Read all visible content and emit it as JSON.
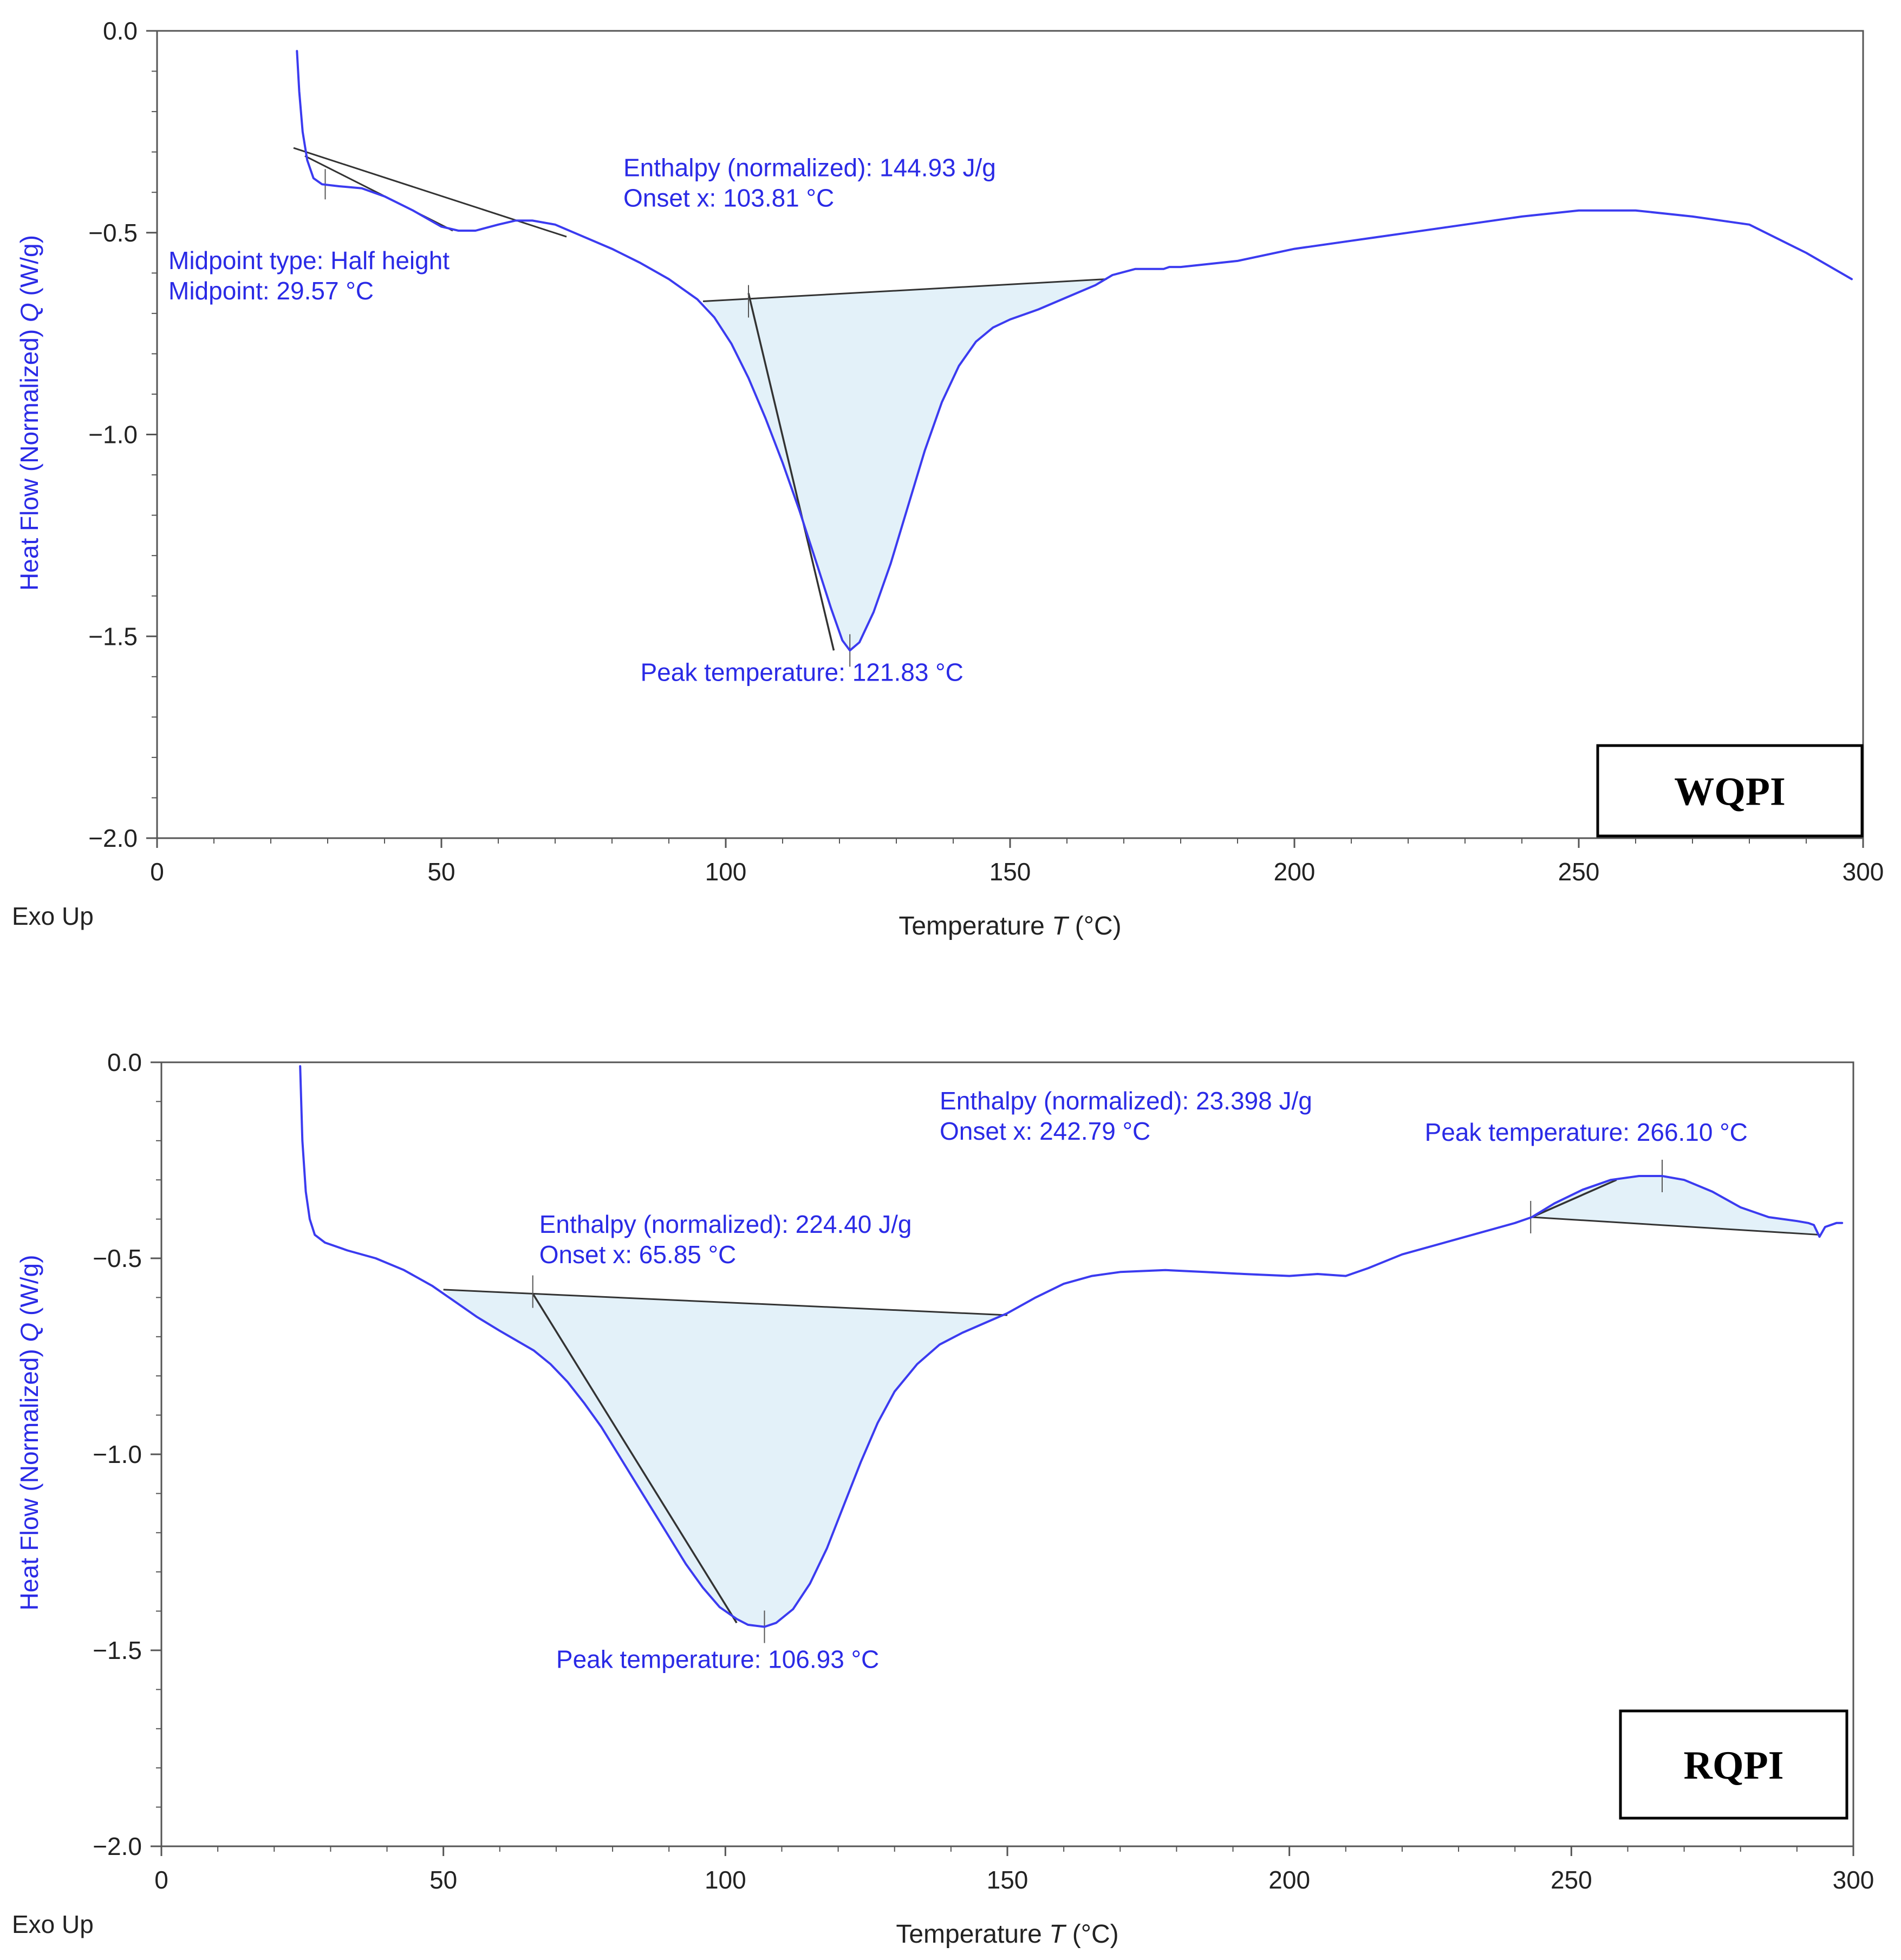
{
  "colors": {
    "curve": "#3b3bf0",
    "annotation_text": "#2a2ae6",
    "axis": "#555555",
    "tangent": "#333333",
    "fill": "#e3f1f9"
  },
  "chart_data": [
    {
      "type": "line",
      "id": "wqpi",
      "sample_label": "WQPI",
      "xlabel_main": "Temperature ",
      "xlabel_symbol": "T",
      "xlabel_unit": " (°C)",
      "ylabel_main": "Heat Flow (Normalized) ",
      "ylabel_symbol": "Q",
      "ylabel_unit": " (W/g)",
      "corner_label": "Exo Up",
      "xlim": [
        0,
        300
      ],
      "ylim": [
        -2.0,
        0.0
      ],
      "x_ticks": [
        0,
        50,
        100,
        150,
        200,
        250,
        300
      ],
      "x_tick_labels": [
        "0",
        "50",
        "100",
        "150",
        "200",
        "250",
        "300"
      ],
      "y_ticks": [
        0.0,
        -0.5,
        -1.0,
        -1.5,
        -2.0
      ],
      "y_tick_labels": [
        "0.0",
        "−0.5",
        "−1.0",
        "−1.5",
        "−2.0"
      ],
      "series": [
        {
          "name": "Heat flow",
          "points": [
            [
              24.6,
              -0.05
            ],
            [
              25.0,
              -0.15
            ],
            [
              25.6,
              -0.25
            ],
            [
              26.4,
              -0.32
            ],
            [
              27.5,
              -0.365
            ],
            [
              29.0,
              -0.38
            ],
            [
              32,
              -0.385
            ],
            [
              36,
              -0.39
            ],
            [
              40,
              -0.41
            ],
            [
              45,
              -0.445
            ],
            [
              50,
              -0.485
            ],
            [
              53,
              -0.495
            ],
            [
              56,
              -0.495
            ],
            [
              60,
              -0.48
            ],
            [
              63,
              -0.47
            ],
            [
              66,
              -0.47
            ],
            [
              70,
              -0.48
            ],
            [
              75,
              -0.51
            ],
            [
              80,
              -0.54
            ],
            [
              85,
              -0.575
            ],
            [
              90,
              -0.615
            ],
            [
              95,
              -0.665
            ],
            [
              98,
              -0.71
            ],
            [
              101,
              -0.775
            ],
            [
              104,
              -0.86
            ],
            [
              107,
              -0.96
            ],
            [
              110,
              -1.07
            ],
            [
              113,
              -1.19
            ],
            [
              116,
              -1.32
            ],
            [
              118.5,
              -1.43
            ],
            [
              120.5,
              -1.51
            ],
            [
              121.83,
              -1.535
            ],
            [
              123.5,
              -1.515
            ],
            [
              126,
              -1.44
            ],
            [
              129,
              -1.32
            ],
            [
              132,
              -1.18
            ],
            [
              135,
              -1.04
            ],
            [
              138,
              -0.92
            ],
            [
              141,
              -0.83
            ],
            [
              144,
              -0.77
            ],
            [
              147,
              -0.735
            ],
            [
              150,
              -0.715
            ],
            [
              155,
              -0.69
            ],
            [
              160,
              -0.66
            ],
            [
              165,
              -0.63
            ],
            [
              168,
              -0.605
            ],
            [
              172,
              -0.59
            ],
            [
              177,
              -0.59
            ],
            [
              178,
              -0.585
            ],
            [
              180,
              -0.585
            ],
            [
              190,
              -0.57
            ],
            [
              200,
              -0.54
            ],
            [
              210,
              -0.52
            ],
            [
              220,
              -0.5
            ],
            [
              230,
              -0.48
            ],
            [
              240,
              -0.46
            ],
            [
              250,
              -0.445
            ],
            [
              260,
              -0.445
            ],
            [
              270,
              -0.46
            ],
            [
              280,
              -0.48
            ],
            [
              290,
              -0.55
            ],
            [
              298,
              -0.615
            ]
          ]
        }
      ],
      "endotherms": [
        {
          "baseline": [
            [
              96,
              -0.67
            ],
            [
              167,
              -0.615
            ]
          ],
          "tangent": [
            [
              104,
              -0.65
            ],
            [
              119,
              -1.535
            ]
          ],
          "onset_tick": [
            104,
            -0.67
          ],
          "peak_tick": [
            121.83,
            -1.535
          ]
        }
      ],
      "glass_transition": {
        "tangent": [
          [
            24,
            -0.29
          ],
          [
            72,
            -0.51
          ]
        ],
        "inner_tangent": [
          [
            26,
            -0.31
          ],
          [
            52,
            -0.495
          ]
        ],
        "tick": [
          29.57,
          -0.38
        ]
      },
      "annotations": [
        {
          "lines": [
            "Enthalpy (normalized): 144.93 J/g",
            "Onset x: 103.81 °C"
          ],
          "x": 82,
          "y": -0.36
        },
        {
          "lines": [
            "Midpoint type: Half height",
            "Midpoint: 29.57 °C"
          ],
          "x": 2,
          "y": -0.59
        },
        {
          "lines": [
            "Peak temperature: 121.83 °C"
          ],
          "x": 85,
          "y": -1.61
        }
      ]
    },
    {
      "type": "line",
      "id": "rqpi",
      "sample_label": "RQPI",
      "xlabel_main": "Temperature ",
      "xlabel_symbol": "T",
      "xlabel_unit": " (°C)",
      "ylabel_main": "Heat Flow (Normalized) ",
      "ylabel_symbol": "Q",
      "ylabel_unit": " (W/g)",
      "corner_label": "Exo Up",
      "xlim": [
        0,
        300
      ],
      "ylim": [
        -2.0,
        0.0
      ],
      "x_ticks": [
        0,
        50,
        100,
        150,
        200,
        250,
        300
      ],
      "x_tick_labels": [
        "0",
        "50",
        "100",
        "150",
        "200",
        "250",
        "300"
      ],
      "y_ticks": [
        0.0,
        -0.5,
        -1.0,
        -1.5,
        -2.0
      ],
      "y_tick_labels": [
        "0.0",
        "−0.5",
        "−1.0",
        "−1.5",
        "−2.0"
      ],
      "series": [
        {
          "name": "Heat flow",
          "points": [
            [
              24.6,
              -0.01
            ],
            [
              25.0,
              -0.2
            ],
            [
              25.6,
              -0.33
            ],
            [
              26.3,
              -0.4
            ],
            [
              27.2,
              -0.44
            ],
            [
              29,
              -0.46
            ],
            [
              33,
              -0.48
            ],
            [
              38,
              -0.5
            ],
            [
              43,
              -0.53
            ],
            [
              48,
              -0.57
            ],
            [
              52,
              -0.61
            ],
            [
              56,
              -0.65
            ],
            [
              60,
              -0.685
            ],
            [
              63,
              -0.71
            ],
            [
              66,
              -0.735
            ],
            [
              69,
              -0.77
            ],
            [
              72,
              -0.815
            ],
            [
              75,
              -0.87
            ],
            [
              78,
              -0.93
            ],
            [
              81,
              -1.0
            ],
            [
              84,
              -1.07
            ],
            [
              87,
              -1.14
            ],
            [
              90,
              -1.21
            ],
            [
              93,
              -1.28
            ],
            [
              96,
              -1.34
            ],
            [
              99,
              -1.39
            ],
            [
              102,
              -1.42
            ],
            [
              104,
              -1.435
            ],
            [
              106.93,
              -1.44
            ],
            [
              109,
              -1.43
            ],
            [
              112,
              -1.395
            ],
            [
              115,
              -1.33
            ],
            [
              118,
              -1.24
            ],
            [
              121,
              -1.13
            ],
            [
              124,
              -1.02
            ],
            [
              127,
              -0.92
            ],
            [
              130,
              -0.84
            ],
            [
              134,
              -0.77
            ],
            [
              138,
              -0.72
            ],
            [
              142,
              -0.69
            ],
            [
              146,
              -0.665
            ],
            [
              150,
              -0.64
            ],
            [
              155,
              -0.6
            ],
            [
              160,
              -0.565
            ],
            [
              165,
              -0.545
            ],
            [
              170,
              -0.535
            ],
            [
              178,
              -0.53
            ],
            [
              185,
              -0.535
            ],
            [
              192,
              -0.54
            ],
            [
              200,
              -0.545
            ],
            [
              205,
              -0.54
            ],
            [
              210,
              -0.545
            ],
            [
              214,
              -0.525
            ],
            [
              220,
              -0.49
            ],
            [
              230,
              -0.45
            ],
            [
              240,
              -0.41
            ],
            [
              243,
              -0.395
            ],
            [
              247,
              -0.36
            ],
            [
              252,
              -0.325
            ],
            [
              257,
              -0.3
            ],
            [
              262,
              -0.29
            ],
            [
              266.1,
              -0.29
            ],
            [
              270,
              -0.3
            ],
            [
              275,
              -0.33
            ],
            [
              280,
              -0.37
            ],
            [
              285,
              -0.395
            ],
            [
              290,
              -0.405
            ],
            [
              292,
              -0.41
            ],
            [
              293,
              -0.415
            ],
            [
              294,
              -0.445
            ],
            [
              295,
              -0.42
            ],
            [
              297,
              -0.41
            ],
            [
              298,
              -0.41
            ]
          ]
        }
      ],
      "endotherms": [
        {
          "baseline": [
            [
              50,
              -0.58
            ],
            [
              150,
              -0.645
            ]
          ],
          "tangent": [
            [
              65.85,
              -0.59
            ],
            [
              102,
              -1.43
            ]
          ],
          "onset_tick": [
            65.85,
            -0.585
          ],
          "peak_tick": [
            106.93,
            -1.44
          ]
        },
        {
          "baseline": [
            [
              243,
              -0.395
            ],
            [
              294,
              -0.44
            ]
          ],
          "tangent": [
            [
              243,
              -0.395
            ],
            [
              258,
              -0.3
            ]
          ],
          "onset_tick": [
            242.79,
            -0.395
          ],
          "peak_tick": [
            266.1,
            -0.29
          ]
        }
      ],
      "annotations": [
        {
          "lines": [
            "Enthalpy (normalized): 23.398 J/g",
            "Onset x: 242.79 °C"
          ],
          "x": 138,
          "y": -0.12
        },
        {
          "lines": [
            "Peak temperature: 266.10 °C"
          ],
          "x": 224,
          "y": -0.2
        },
        {
          "lines": [
            "Enthalpy (normalized): 224.40 J/g",
            "Onset x: 65.85 °C"
          ],
          "x": 67,
          "y": -0.435
        },
        {
          "lines": [
            "Peak temperature: 106.93 °C"
          ],
          "x": 70,
          "y": -1.545
        }
      ]
    }
  ]
}
